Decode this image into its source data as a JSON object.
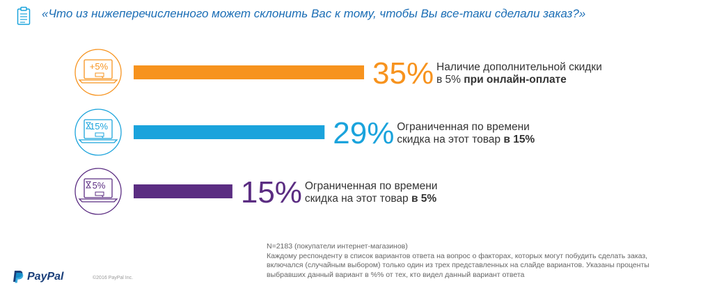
{
  "header": {
    "icon": "clipboard-icon",
    "title": "«Что из нижеперечисленного может склонить Вас к тому, чтобы Вы все-таки сделали заказ?»"
  },
  "chart_data": {
    "type": "bar",
    "orientation": "horizontal",
    "xlim": [
      0,
      100
    ],
    "unit": "%",
    "items": [
      {
        "value": 35,
        "value_label": "35%",
        "color": "#f7931e",
        "icon_text": "+5%",
        "label_lines": [
          {
            "regular": "Наличие дополнительной скидки",
            "bold": ""
          },
          {
            "regular": "в 5% ",
            "bold": "при онлайн-оплате"
          }
        ]
      },
      {
        "value": 29,
        "value_label": "29%",
        "color": "#1aa3dc",
        "icon_text": "15%",
        "label_lines": [
          {
            "regular": "Ограниченная по времени",
            "bold": ""
          },
          {
            "regular": "скидка на этот товар ",
            "bold": "в 15%"
          }
        ]
      },
      {
        "value": 15,
        "value_label": "15%",
        "color": "#5b2d82",
        "icon_text": "5%",
        "label_lines": [
          {
            "regular": "Ограниченная по времени",
            "bold": ""
          },
          {
            "regular": "скидка на этот товар ",
            "bold": "в 5%"
          }
        ]
      }
    ]
  },
  "footnote": {
    "lines": [
      "N=2183 (покупатели интернет-магазинов)",
      "Каждому респонденту в список вариантов ответа на вопрос о факторах, которых могут побудить сделать заказ,",
      "включался (случайным выбором) только один из трех представленных на слайде вариантов. Указаны проценты",
      "выбравших данный вариант в %% от тех, кто видел данный вариант ответа"
    ]
  },
  "footer": {
    "logo_text": "PayPal",
    "copyright": "©2016 PayPal Inc."
  },
  "colors": {
    "title": "#1a6db5",
    "logo_dark": "#1a3f7a",
    "logo_light": "#169bd7"
  }
}
